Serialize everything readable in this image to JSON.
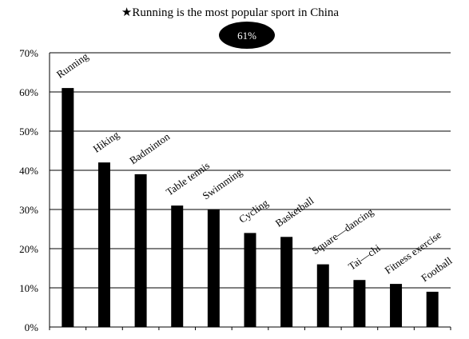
{
  "chart_data": {
    "type": "bar",
    "title": "★Running is the most popular sport in China",
    "annotation": "61%",
    "categories": [
      "Running",
      "Hiking",
      "Badminton",
      "Table tennis",
      "Swimming",
      "Cycling",
      "Basketball",
      "Square—dancing",
      "Tai—chi",
      "Fitness exercise",
      "Football"
    ],
    "values": [
      61,
      42,
      39,
      31,
      30,
      24,
      23,
      16,
      12,
      11,
      9
    ],
    "ylim": [
      0,
      70
    ],
    "yticks": [
      "0%",
      "10%",
      "20%",
      "30%",
      "40%",
      "50%",
      "60%",
      "70%"
    ],
    "grid": true,
    "bar_color": "#000000",
    "annotation_color": "#000000"
  }
}
